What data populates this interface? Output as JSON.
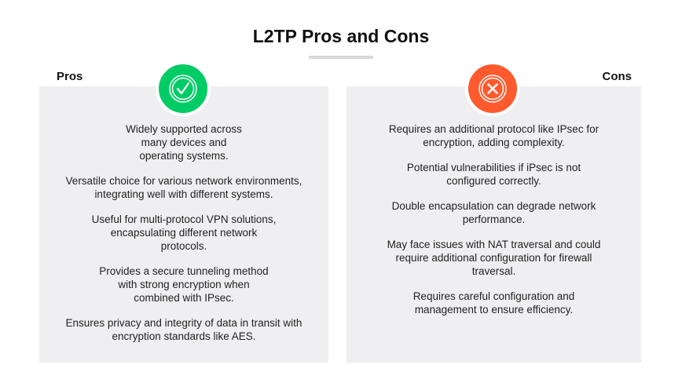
{
  "title": "L2TP Pros and Cons",
  "colors": {
    "pros": "#00cc66",
    "cons": "#ff5a2e",
    "panel": "#efeff1"
  },
  "pros": {
    "label": "Pros",
    "icon": "check-circle-icon",
    "items": [
      "Widely supported across many devices and operating systems.",
      "Versatile choice for various network environments, integrating well with different systems.",
      "Useful for multi-protocol VPN solutions, encapsulating different network protocols.",
      "Provides a secure tunneling method with strong encryption when combined with IPsec.",
      "Ensures privacy and integrity of data in transit with encryption standards like AES."
    ]
  },
  "cons": {
    "label": "Cons",
    "icon": "x-circle-icon",
    "items": [
      "Requires an additional protocol like IPsec for encryption, adding complexity.",
      "Potential vulnerabilities if iPsec is not configured correctly.",
      "Double encapsulation can degrade network performance.",
      "May face issues with NAT traversal and could require additional configuration for firewall traversal.",
      "Requires careful configuration and management to ensure efficiency."
    ]
  }
}
